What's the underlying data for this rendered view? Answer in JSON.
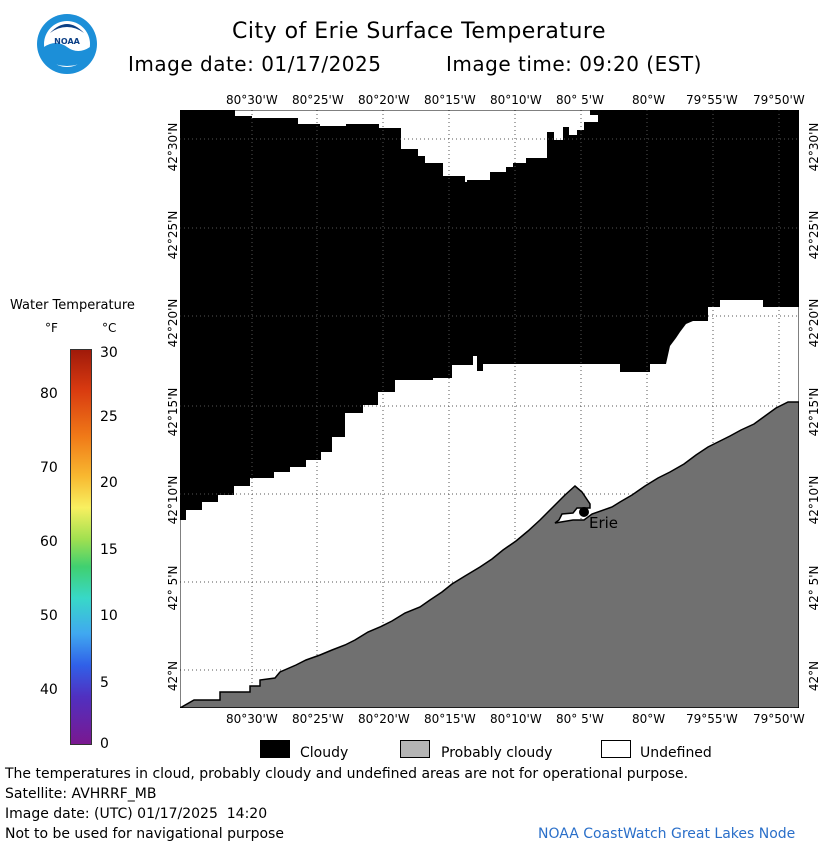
{
  "header": {
    "title": "City of Erie Surface Temperature",
    "image_date": "Image date: 01/17/2025",
    "image_time": "Image time: 09:20 (EST)"
  },
  "logo": {
    "text": "NOAA"
  },
  "map": {
    "lon_labels": [
      "80°30'W",
      "80°25'W",
      "80°20'W",
      "80°15'W",
      "80°10'W",
      "80° 5'W",
      "80°W",
      "79°55'W",
      "79°50'W"
    ],
    "lat_labels": [
      "42°30'N",
      "42°25'N",
      "42°20'N",
      "42°15'N",
      "42°10'N",
      "42° 5'N",
      "42°N"
    ],
    "city_label": "Erie",
    "colors": {
      "cloud": "#000000",
      "land": "#707070",
      "undefined": "#ffffff"
    }
  },
  "scale": {
    "title": "Water Temperature",
    "unit_f": "°F",
    "unit_c": "°C",
    "f_ticks": [
      "80",
      "70",
      "60",
      "50",
      "40"
    ],
    "c_ticks": [
      "30",
      "25",
      "20",
      "15",
      "10",
      "5",
      "0"
    ]
  },
  "legend": {
    "cloudy": "Cloudy",
    "probably_cloudy": "Probably cloudy",
    "undefined": "Undefined",
    "cloudy_color": "#000000",
    "probably_cloudy_color": "#b4b4b4",
    "undefined_color": "#ffffff"
  },
  "footer": {
    "note": "The temperatures in cloud, probably cloudy and undefined areas are not for operational purpose.",
    "satellite": "Satellite: AVHRRF_MB",
    "utc_date": "Image date: (UTC) 01/17/2025  14:20",
    "nav": "Not to be used for navigational purpose",
    "credit": "NOAA CoastWatch Great Lakes Node",
    "credit_color": "#2a6fc9"
  }
}
